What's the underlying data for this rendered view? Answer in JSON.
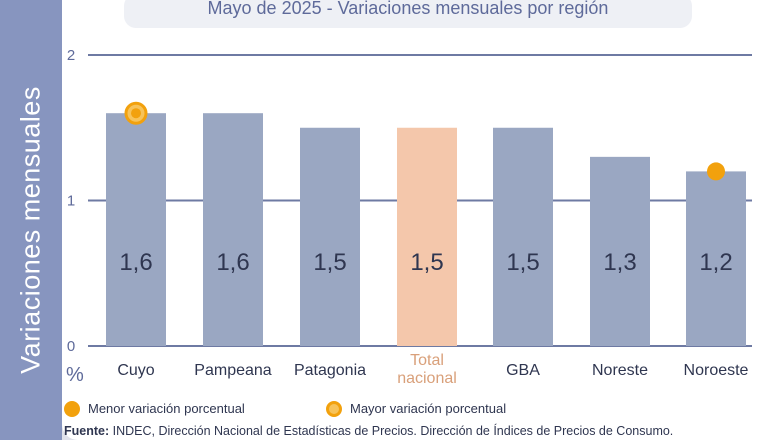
{
  "title": {
    "date": "Mayo de 2025",
    "separator": " - ",
    "text": "Variaciones mensuales por región"
  },
  "ylabel": "Variaciones  mensuales",
  "unit": "%",
  "legend": {
    "min_label": "Menor variación porcentual",
    "max_label": "Mayor variación porcentual"
  },
  "source": {
    "label": "Fuente:",
    "text": " INDEC, Dirección Nacional de Estadísticas de Precios. Dirección de Índices de Precios de Consumo."
  },
  "colors": {
    "bar": "#9aa7c2",
    "highlight_bar": "#f4c7ab",
    "marker": "#f2a10d",
    "panel": "#8795bf",
    "text": "#2f3650"
  },
  "chart_data": {
    "type": "bar",
    "title": "Mayo de 2025 - Variaciones mensuales por región",
    "ylabel": "Variaciones mensuales",
    "categories": [
      "Cuyo",
      "Pampeana",
      "Patagonia",
      "Total nacional",
      "GBA",
      "Noreste",
      "Noroeste"
    ],
    "values": [
      1.6,
      1.6,
      1.5,
      1.5,
      1.5,
      1.3,
      1.2
    ],
    "value_labels": [
      "1,6",
      "1,6",
      "1,5",
      "1,5",
      "1,5",
      "1,3",
      "1,2"
    ],
    "highlight_category": "Total nacional",
    "markers": [
      {
        "category": "Cuyo",
        "kind": "max"
      },
      {
        "category": "Noroeste",
        "kind": "min"
      }
    ],
    "yticks": [
      0,
      1,
      2
    ],
    "ytick_labels": [
      "0",
      "1",
      "2"
    ],
    "ylim": [
      0,
      2
    ],
    "grid": true
  }
}
